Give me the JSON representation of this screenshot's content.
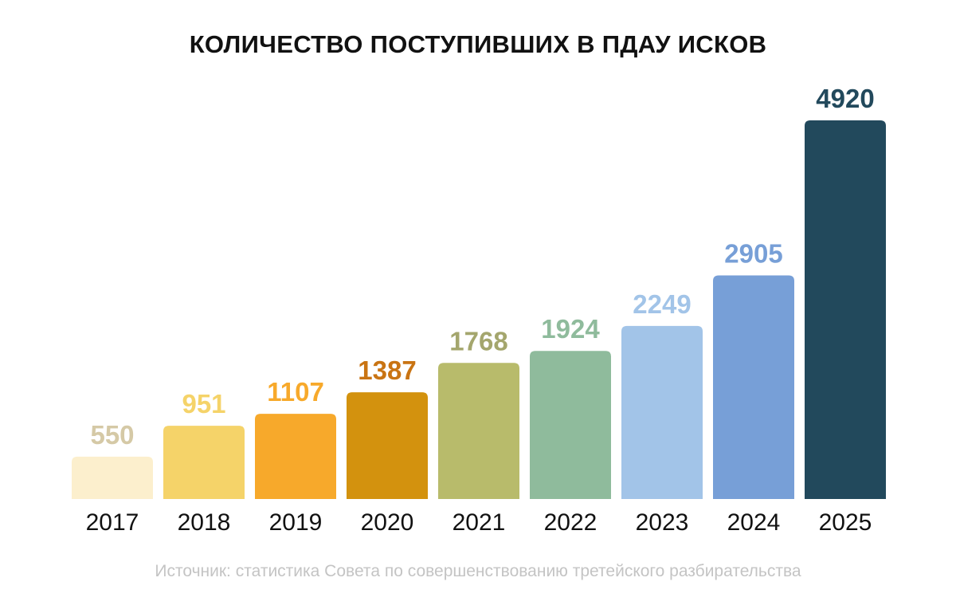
{
  "chart_data": {
    "type": "bar",
    "title": "КОЛИЧЕСТВО ПОСТУПИВШИХ В ПДАУ ИСКОВ",
    "categories": [
      "2017",
      "2018",
      "2019",
      "2020",
      "2021",
      "2022",
      "2023",
      "2024",
      "2025"
    ],
    "values": [
      550,
      951,
      1107,
      1387,
      1768,
      1924,
      2249,
      2905,
      4920
    ],
    "value_labels": [
      "550",
      "951",
      "1107",
      "1387",
      "1768",
      "1924",
      "2249",
      "2905",
      "4920"
    ],
    "colors": [
      "#FCEFCD",
      "#F5D369",
      "#F7A92B",
      "#D3920E",
      "#B8BB6B",
      "#8FBB9C",
      "#A2C4E8",
      "#779FD7",
      "#22495C"
    ],
    "label_colors": [
      "#D5C9A6",
      "#F5D369",
      "#F7A92B",
      "#C97413",
      "#A4A66D",
      "#8FBB9C",
      "#A2C4E8",
      "#779FD7",
      "#22495C"
    ],
    "xlabel": "",
    "ylabel": "",
    "ylim": [
      0,
      4920
    ],
    "grid": false,
    "legend": "none",
    "source": "Источник: статистика Совета по совершенствованию третейского разбирательства"
  }
}
